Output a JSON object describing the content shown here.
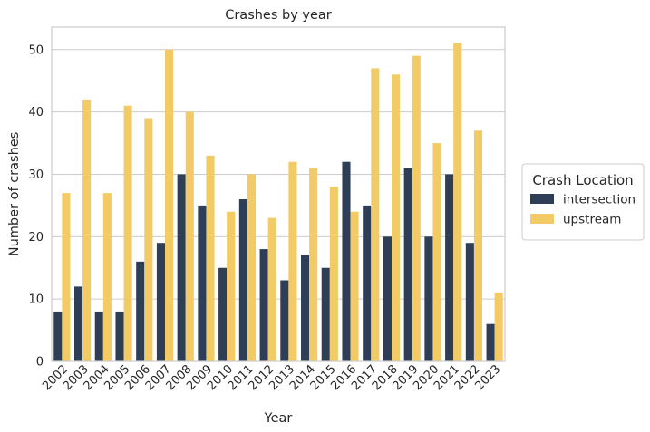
{
  "chart_data": {
    "type": "bar",
    "title": "Crashes by year",
    "xlabel": "Year",
    "ylabel": "Number of crashes",
    "categories": [
      "2002",
      "2003",
      "2004",
      "2005",
      "2006",
      "2007",
      "2008",
      "2009",
      "2010",
      "2011",
      "2012",
      "2013",
      "2014",
      "2015",
      "2016",
      "2017",
      "2018",
      "2019",
      "2020",
      "2021",
      "2022",
      "2023"
    ],
    "series": [
      {
        "name": "intersection",
        "color": "#2e3e56",
        "values": [
          8,
          12,
          8,
          8,
          16,
          19,
          30,
          25,
          15,
          26,
          18,
          13,
          17,
          15,
          32,
          25,
          20,
          31,
          20,
          30,
          19,
          6
        ]
      },
      {
        "name": "upstream",
        "color": "#f2ca66",
        "values": [
          27,
          42,
          27,
          41,
          39,
          50,
          40,
          33,
          24,
          30,
          23,
          32,
          31,
          28,
          24,
          47,
          46,
          49,
          35,
          51,
          37,
          11
        ]
      }
    ],
    "ylim": [
      0,
      53.6
    ],
    "yticks": [
      0,
      10,
      20,
      30,
      40,
      50
    ],
    "grid": true,
    "legend": {
      "title": "Crash Location",
      "placement": "center-right outside"
    }
  }
}
